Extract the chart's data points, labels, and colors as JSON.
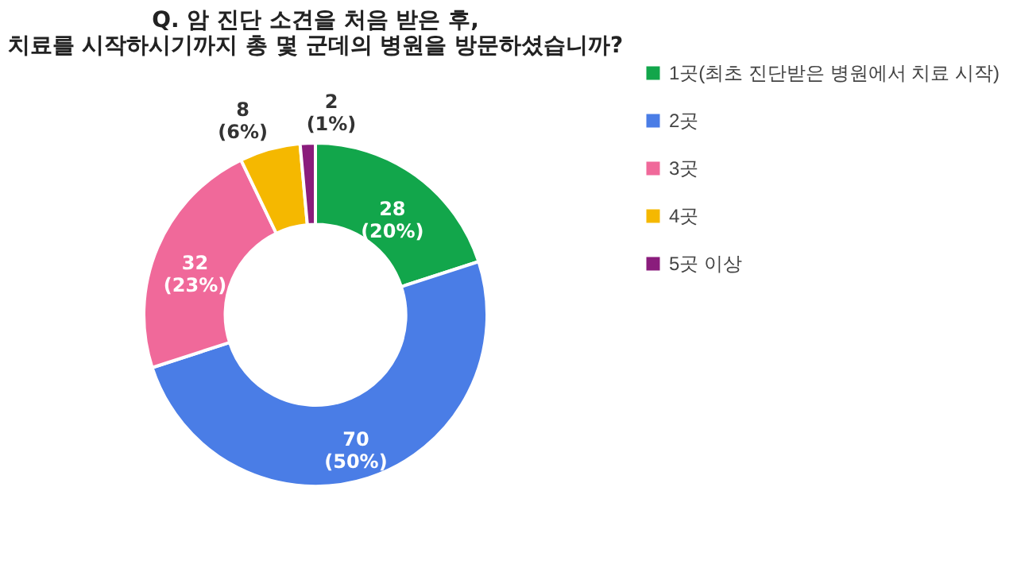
{
  "chart_data": {
    "type": "donut",
    "title": "Q. 암 진단 소견을 처음 받은 후,\n치료를 시작하시기까지 총 몇 군데의 병원을 방문하셨습니까?",
    "categories": [
      "1곳(최초 진단받은 병원에서 치료 시작)",
      "2곳",
      "3곳",
      "4곳",
      "5곳 이상"
    ],
    "values": [
      28,
      70,
      32,
      8,
      2
    ],
    "colors": [
      "#12a64b",
      "#4a7de6",
      "#f0699a",
      "#f5b800",
      "#8a1c7c"
    ],
    "value_labels": [
      "28\n(20%)",
      "70\n(50%)",
      "32\n(23%)",
      "8\n(6%)",
      "2\n(1%)"
    ],
    "legend": "right"
  }
}
